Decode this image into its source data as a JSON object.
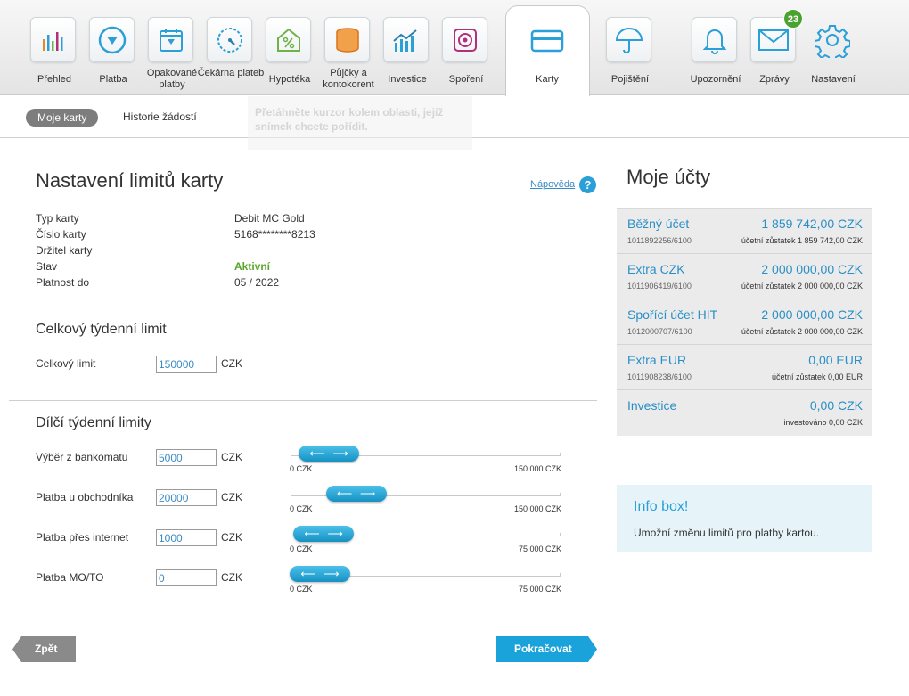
{
  "nav": {
    "items": [
      {
        "label": "Přehled"
      },
      {
        "label": "Platba"
      },
      {
        "label": "Opakované platby"
      },
      {
        "label": "Čekárna plateb"
      },
      {
        "label": "Hypotéka"
      },
      {
        "label": "Půjčky a kontokorent"
      },
      {
        "label": "Investice"
      },
      {
        "label": "Spoření"
      },
      {
        "label": "Karty"
      },
      {
        "label": "Pojištění"
      },
      {
        "label": "Upozornění"
      },
      {
        "label": "Zprávy"
      },
      {
        "label": "Nastavení"
      }
    ],
    "messages_badge": "23",
    "active": "Karty"
  },
  "subnav": {
    "active_tab": "Moje karty",
    "tab2": "Historie žádostí"
  },
  "ghost_overlay": "Přetáhněte kurzor kolem oblasti, jejíž snímek chcete pořídit.",
  "page": {
    "title": "Nastavení limitů karty",
    "help_link": "Nápověda",
    "help_icon": "?"
  },
  "card_info": {
    "labels": [
      "Typ karty",
      "Číslo karty",
      "Držitel karty",
      "Stav",
      "Platnost do"
    ],
    "values": [
      "Debit MC Gold",
      "5168********8213",
      "",
      "Aktivní",
      "05 / 2022"
    ]
  },
  "total_limit": {
    "section_title": "Celkový týdenní limit",
    "label": "Celkový limit",
    "value": "150000",
    "unit": "CZK"
  },
  "partial_limits": {
    "section_title": "Dílčí týdenní limity",
    "rows": [
      {
        "label": "Výběr z bankomatu",
        "value": "5000",
        "unit": "CZK",
        "min_label": "0 CZK",
        "max_label": "150 000 CZK",
        "min": 0,
        "max": 150000,
        "amount": 5000
      },
      {
        "label": "Platba u obchodníka",
        "value": "20000",
        "unit": "CZK",
        "min_label": "0 CZK",
        "max_label": "150 000 CZK",
        "min": 0,
        "max": 150000,
        "amount": 20000
      },
      {
        "label": "Platba přes internet",
        "value": "1000",
        "unit": "CZK",
        "min_label": "0 CZK",
        "max_label": "75 000 CZK",
        "min": 0,
        "max": 75000,
        "amount": 1000
      },
      {
        "label": "Platba MO/TO",
        "value": "0",
        "unit": "CZK",
        "min_label": "0 CZK",
        "max_label": "75 000 CZK",
        "min": 0,
        "max": 75000,
        "amount": 0
      }
    ],
    "slider_icons": [
      "arrow-left-icon",
      "arrow-right-icon"
    ]
  },
  "buttons": {
    "back": "Zpět",
    "next": "Pokračovat"
  },
  "accounts": {
    "title": "Moje účty",
    "items": [
      {
        "name": "Běžný účet",
        "amount": "1 859 742,00 CZK",
        "number": "1011892256/6100",
        "balance": "účetní zůstatek 1 859 742,00 CZK"
      },
      {
        "name": "Extra CZK",
        "amount": "2 000 000,00 CZK",
        "number": "1011906419/6100",
        "balance": "účetní zůstatek 2 000 000,00 CZK"
      },
      {
        "name": "Spořící účet HIT",
        "amount": "2 000 000,00 CZK",
        "number": "1012000707/6100",
        "balance": "účetní zůstatek 2 000 000,00 CZK"
      },
      {
        "name": "Extra EUR",
        "amount": "0,00 EUR",
        "number": "1011908238/6100",
        "balance": "účetní zůstatek 0,00 EUR"
      },
      {
        "name": "Investice",
        "amount": "0,00 CZK",
        "number": "",
        "balance": "investováno 0,00 CZK"
      }
    ]
  },
  "info_box": {
    "title": "Info box!",
    "text": "Umožní změnu limitů pro platby kartou."
  },
  "colors": {
    "accent": "#1aa3da",
    "link": "#2a8fc6",
    "status_ok": "#5aa62c",
    "badge": "#4aa32f",
    "icon_blue": "#2a9fd8",
    "icon_orange": "#e8862a",
    "icon_green": "#6fb24a",
    "icon_magenta": "#b0307a"
  },
  "icons": {
    "nav": [
      "bar-chart-icon",
      "payment-arrow-icon",
      "calendar-icon",
      "waiting-clock-icon",
      "house-percent-icon",
      "coins-stack-icon",
      "investment-chart-icon",
      "safe-icon",
      "credit-card-icon",
      "umbrella-icon",
      "bell-icon",
      "envelope-icon",
      "gear-icon"
    ]
  }
}
